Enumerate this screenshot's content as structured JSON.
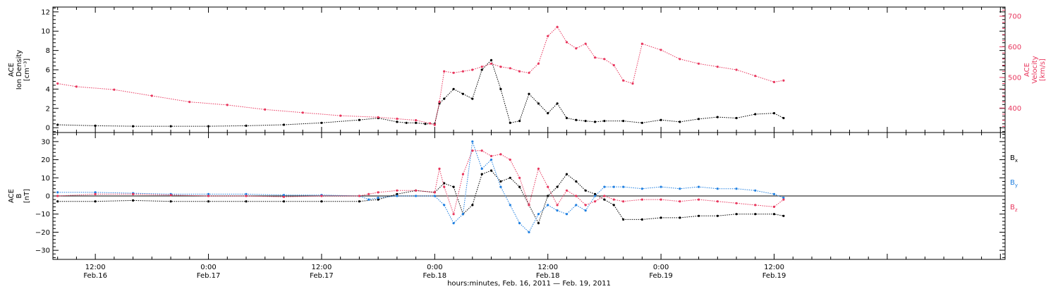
{
  "chart_data": {
    "type": "scatter",
    "xaxis": {
      "title": "hours:minutes, Feb. 16, 2011 — Feb. 19, 2011",
      "range_hours": [
        -16.5,
        84.5
      ],
      "ticks": [
        {
          "h": -12,
          "time": "12:00",
          "date": "Feb.16"
        },
        {
          "h": 0,
          "time": "0:00",
          "date": "Feb.17"
        },
        {
          "h": 12,
          "time": "12:00",
          "date": "Feb.17"
        },
        {
          "h": 24,
          "time": "0:00",
          "date": "Feb.18"
        },
        {
          "h": 36,
          "time": "12:00",
          "date": "Feb.18"
        },
        {
          "h": 48,
          "time": "0:00",
          "date": "Feb.19"
        },
        {
          "h": 60,
          "time": "12:00",
          "date": "Feb.19"
        }
      ]
    },
    "panels": [
      {
        "id": "density-velocity",
        "left_axis": {
          "label": "ACE\nIon Density\n[cm⁻³]",
          "ylim": [
            -0.5,
            12.5
          ],
          "ticks": [
            0,
            2,
            4,
            6,
            8,
            10,
            12
          ],
          "tick_labels": [
            "0",
            "2",
            "4",
            "6",
            "8",
            "10",
            "12"
          ]
        },
        "right_axis": {
          "label": "ACE\nVelocity\n[km/s]",
          "ylim": [
            320,
            730
          ],
          "ticks": [
            400,
            500,
            600,
            700
          ],
          "tick_labels": [
            "400",
            "500",
            "600",
            "700"
          ],
          "color": "#e8365d"
        },
        "series": [
          {
            "name": "",
            "axis": "left",
            "color": "#000000",
            "x": [
              -16,
              -12,
              -8,
              -4,
              0,
              4,
              8,
              12,
              16,
              18,
              20,
              21,
              22,
              23,
              24,
              24.5,
              25,
              26,
              27,
              28,
              29,
              30,
              31,
              32,
              33,
              34,
              35,
              36,
              37,
              38,
              39,
              40,
              41,
              42,
              44,
              46,
              48,
              50,
              52,
              54,
              56,
              58,
              60,
              61
            ],
            "y": [
              0.3,
              0.2,
              0.15,
              0.15,
              0.15,
              0.2,
              0.3,
              0.5,
              0.8,
              1.0,
              0.6,
              0.5,
              0.5,
              0.4,
              0.4,
              2.5,
              3.0,
              4.0,
              3.5,
              3.0,
              6.0,
              7.0,
              4.0,
              0.5,
              0.7,
              3.5,
              2.5,
              1.5,
              2.5,
              1.0,
              0.8,
              0.7,
              0.6,
              0.7,
              0.7,
              0.5,
              0.8,
              0.6,
              0.9,
              1.1,
              1.0,
              1.4,
              1.5,
              1.0
            ]
          },
          {
            "name": "",
            "axis": "right",
            "color": "#e8365d",
            "x": [
              -16,
              -14,
              -10,
              -6,
              -2,
              2,
              6,
              10,
              14,
              18,
              20,
              22,
              23.5,
              24,
              24.5,
              25,
              26,
              27,
              28,
              29,
              30,
              31,
              32,
              33,
              34,
              35,
              36,
              37,
              38,
              39,
              40,
              41,
              42,
              43,
              44,
              45,
              46,
              48,
              50,
              52,
              54,
              56,
              58,
              60,
              61
            ],
            "y": [
              480,
              470,
              460,
              440,
              420,
              410,
              395,
              385,
              375,
              370,
              365,
              360,
              350,
              345,
              420,
              520,
              515,
              520,
              525,
              535,
              545,
              535,
              530,
              520,
              515,
              545,
              635,
              665,
              615,
              595,
              610,
              565,
              560,
              540,
              490,
              480,
              610,
              590,
              560,
              545,
              535,
              525,
              505,
              485,
              490
            ]
          }
        ]
      },
      {
        "id": "magnetic-field",
        "left_axis": {
          "label": "ACE\nB\n[nT]",
          "ylim": [
            -35,
            35
          ],
          "ticks": [
            -30,
            -20,
            -10,
            0,
            10,
            20,
            30
          ],
          "tick_labels": [
            "−30",
            "−20",
            "−10",
            "0",
            "10",
            "20",
            "30"
          ]
        },
        "legend": [
          "Bx",
          "By",
          "Bz"
        ],
        "series": [
          {
            "name": "Bx",
            "color": "#000000",
            "x": [
              -16,
              -12,
              -8,
              -4,
              0,
              4,
              8,
              12,
              16,
              18,
              20,
              22,
              24,
              25,
              26,
              27,
              28,
              29,
              30,
              31,
              32,
              33,
              34,
              35,
              36,
              37,
              38,
              39,
              40,
              41,
              42,
              43,
              44,
              46,
              48,
              50,
              52,
              54,
              56,
              58,
              60,
              61
            ],
            "y": [
              -3,
              -3,
              -2.5,
              -3,
              -3,
              -3,
              -3,
              -3,
              -3,
              -2,
              1,
              3,
              2,
              7,
              5,
              -10,
              -5,
              12,
              14,
              8,
              10,
              5,
              -5,
              -15,
              0,
              5,
              12,
              8,
              3,
              1,
              -2,
              -5,
              -13,
              -13,
              -12,
              -12,
              -11,
              -11,
              -10,
              -10,
              -10,
              -11
            ]
          },
          {
            "name": "By",
            "color": "#1f7fe0",
            "x": [
              -16,
              -12,
              -8,
              -4,
              0,
              4,
              8,
              12,
              16,
              17,
              18,
              20,
              22,
              24,
              25,
              26,
              27,
              28,
              29,
              30,
              31,
              32,
              33,
              34,
              35,
              36,
              37,
              38,
              39,
              40,
              41,
              42,
              43,
              44,
              46,
              48,
              50,
              52,
              54,
              56,
              58,
              60,
              61
            ],
            "y": [
              2,
              2,
              1.5,
              1,
              1,
              1,
              0.5,
              0.5,
              0,
              -2,
              -1,
              0,
              0,
              0,
              -5,
              -15,
              -10,
              30,
              15,
              20,
              5,
              -5,
              -15,
              -20,
              -10,
              -5,
              -8,
              -10,
              -5,
              -8,
              0,
              5,
              5,
              5,
              4,
              5,
              4,
              5,
              4,
              4,
              3,
              1,
              -1
            ]
          },
          {
            "name": "Bz",
            "color": "#e8365d",
            "x": [
              -16,
              -12,
              -8,
              -4,
              0,
              4,
              8,
              12,
              16,
              17,
              18,
              20,
              22,
              24,
              24.5,
              25,
              26,
              27,
              28,
              29,
              30,
              31,
              32,
              33,
              34,
              35,
              36,
              37,
              38,
              39,
              40,
              41,
              42,
              43,
              44,
              46,
              48,
              50,
              52,
              54,
              56,
              58,
              60,
              61
            ],
            "y": [
              0,
              1,
              1,
              0.5,
              0,
              0,
              -0.5,
              0,
              0,
              1,
              2,
              3,
              3,
              2,
              15,
              5,
              -10,
              12,
              25,
              25,
              22,
              23,
              20,
              10,
              -5,
              15,
              5,
              -5,
              3,
              0,
              -5,
              -3,
              0,
              -2,
              -3,
              -2,
              -2,
              -3,
              -2,
              -3,
              -4,
              -5,
              -6,
              -2
            ]
          }
        ]
      }
    ]
  }
}
